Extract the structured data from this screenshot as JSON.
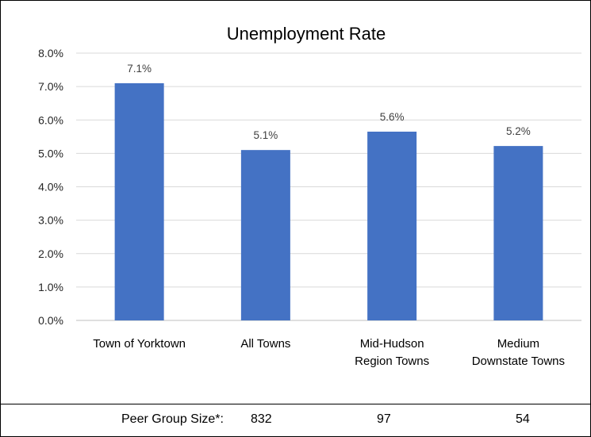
{
  "chart_data": {
    "type": "bar",
    "title": "Unemployment Rate",
    "categories": [
      [
        "Town of Yorktown"
      ],
      [
        "All Towns"
      ],
      [
        "Mid-Hudson",
        "Region Towns"
      ],
      [
        "Medium",
        "Downstate Towns"
      ]
    ],
    "values": [
      7.1,
      5.1,
      5.65,
      5.22
    ],
    "data_labels": [
      "7.1%",
      "5.1%",
      "5.6%",
      "5.2%"
    ],
    "ylim": [
      0,
      8
    ],
    "yticks": [
      "0.0%",
      "1.0%",
      "2.0%",
      "3.0%",
      "4.0%",
      "5.0%",
      "6.0%",
      "7.0%",
      "8.0%"
    ],
    "xlabel": "",
    "ylabel": "",
    "grid": true,
    "bar_color": "#4472C4",
    "grid_color": "#D9D9D9"
  },
  "footer": {
    "label": "Peer Group Size*:",
    "values": [
      "832",
      "97",
      "54"
    ]
  }
}
